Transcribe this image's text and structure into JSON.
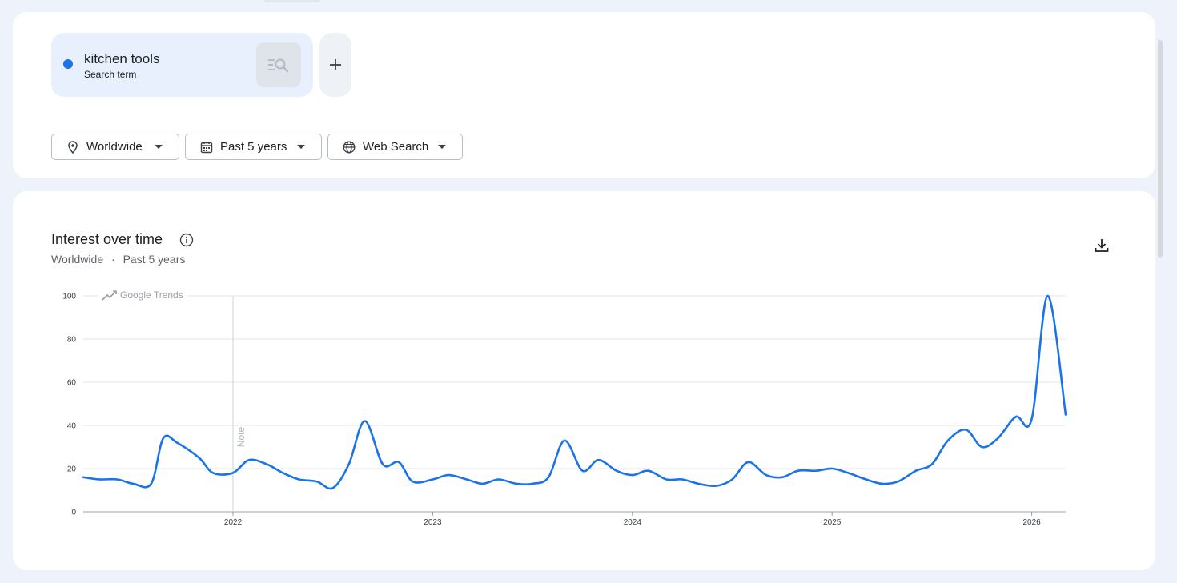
{
  "search": {
    "term": "kitchen tools",
    "type": "Search term",
    "accent": "#1a73e8"
  },
  "filters": {
    "location": "Worldwide",
    "time_range": "Past 5 years",
    "property": "Web Search"
  },
  "chart_card": {
    "title": "Interest over time",
    "subtitle_location": "Worldwide",
    "subtitle_separator": "·",
    "subtitle_time": "Past 5 years",
    "watermark": "Google Trends",
    "note_label": "Note"
  },
  "icons": {
    "location": "location-pin-icon",
    "time": "calendar-icon",
    "property": "globe-icon",
    "info": "info-icon",
    "download": "download-icon",
    "add": "plus-icon",
    "search": "search-list-icon"
  },
  "chart_data": {
    "type": "line",
    "title": "",
    "xlabel": "",
    "ylabel": "",
    "ylim": [
      0,
      100
    ],
    "yticks": [
      0,
      20,
      40,
      60,
      80,
      100
    ],
    "x_ticks": [
      "2022",
      "2023",
      "2024",
      "2025",
      "2026"
    ],
    "x_range": [
      2021.25,
      2026.17
    ],
    "grid": true,
    "line_color": "#1a73e8",
    "note_at": 2022.0,
    "series": [
      {
        "name": "",
        "points": [
          [
            2021.25,
            16
          ],
          [
            2021.33,
            15
          ],
          [
            2021.42,
            15
          ],
          [
            2021.5,
            13
          ],
          [
            2021.59,
            13
          ],
          [
            2021.65,
            34
          ],
          [
            2021.72,
            32
          ],
          [
            2021.83,
            25
          ],
          [
            2021.9,
            18
          ],
          [
            2022.0,
            18
          ],
          [
            2022.08,
            24
          ],
          [
            2022.17,
            22
          ],
          [
            2022.25,
            18
          ],
          [
            2022.33,
            15
          ],
          [
            2022.42,
            14
          ],
          [
            2022.5,
            11
          ],
          [
            2022.58,
            22
          ],
          [
            2022.66,
            42
          ],
          [
            2022.75,
            22
          ],
          [
            2022.83,
            23
          ],
          [
            2022.9,
            14
          ],
          [
            2023.0,
            15
          ],
          [
            2023.08,
            17
          ],
          [
            2023.17,
            15
          ],
          [
            2023.25,
            13
          ],
          [
            2023.33,
            15
          ],
          [
            2023.42,
            13
          ],
          [
            2023.5,
            13
          ],
          [
            2023.58,
            16
          ],
          [
            2023.66,
            33
          ],
          [
            2023.75,
            19
          ],
          [
            2023.83,
            24
          ],
          [
            2023.92,
            19
          ],
          [
            2024.0,
            17
          ],
          [
            2024.08,
            19
          ],
          [
            2024.17,
            15
          ],
          [
            2024.25,
            15
          ],
          [
            2024.33,
            13
          ],
          [
            2024.42,
            12
          ],
          [
            2024.5,
            15
          ],
          [
            2024.58,
            23
          ],
          [
            2024.67,
            17
          ],
          [
            2024.75,
            16
          ],
          [
            2024.83,
            19
          ],
          [
            2024.92,
            19
          ],
          [
            2025.0,
            20
          ],
          [
            2025.08,
            18
          ],
          [
            2025.17,
            15
          ],
          [
            2025.25,
            13
          ],
          [
            2025.33,
            14
          ],
          [
            2025.42,
            19
          ],
          [
            2025.5,
            22
          ],
          [
            2025.58,
            33
          ],
          [
            2025.67,
            38
          ],
          [
            2025.75,
            30
          ],
          [
            2025.83,
            34
          ],
          [
            2025.92,
            44
          ],
          [
            2026.0,
            43
          ],
          [
            2026.08,
            100
          ],
          [
            2026.17,
            45
          ]
        ]
      }
    ]
  }
}
